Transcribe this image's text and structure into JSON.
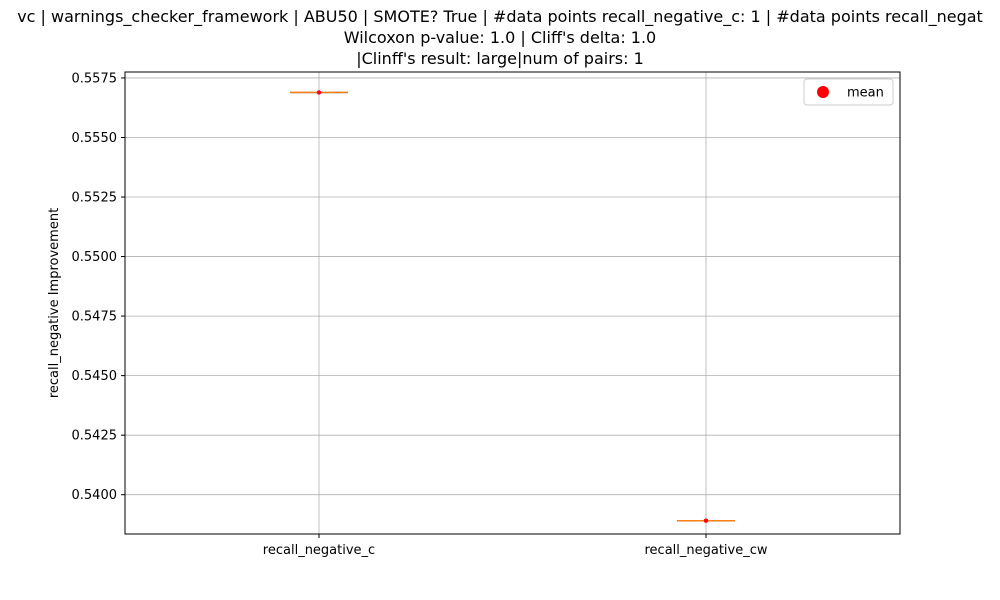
{
  "chart_data": {
    "type": "box",
    "title_lines": [
      "vc | warnings_checker_framework | ABU50 | SMOTE? True | #data points recall_negative_c: 1 | #data points recall_negat",
      "Wilcoxon p-value: 1.0 | Cliff's delta: 1.0",
      "|Clinff's result: large|num of pairs: 1"
    ],
    "xlabel": "",
    "ylabel": "recall_negative Improvement",
    "categories": [
      "recall_negative_c",
      "recall_negative_cw"
    ],
    "series": [
      {
        "name": "recall_negative_c",
        "values": [
          0.55689
        ],
        "mean": 0.55689
      },
      {
        "name": "recall_negative_cw",
        "values": [
          0.53891
        ],
        "mean": 0.53891
      }
    ],
    "ylim": [
      0.53835,
      0.55775
    ],
    "yticks": [
      0.54,
      0.5425,
      0.545,
      0.5475,
      0.55,
      0.5525,
      0.555,
      0.5575
    ],
    "ytick_labels": [
      "0.5400",
      "0.5425",
      "0.5450",
      "0.5475",
      "0.5500",
      "0.5525",
      "0.5550",
      "0.5575"
    ],
    "grid": true,
    "legend": {
      "position": "top-right",
      "entries": [
        {
          "label": "mean",
          "color": "#ff0000"
        }
      ]
    },
    "colors": {
      "median": "#ff7f0e",
      "mean": "#ff0000",
      "grid": "#b0b0b0",
      "axis": "#000000"
    }
  }
}
